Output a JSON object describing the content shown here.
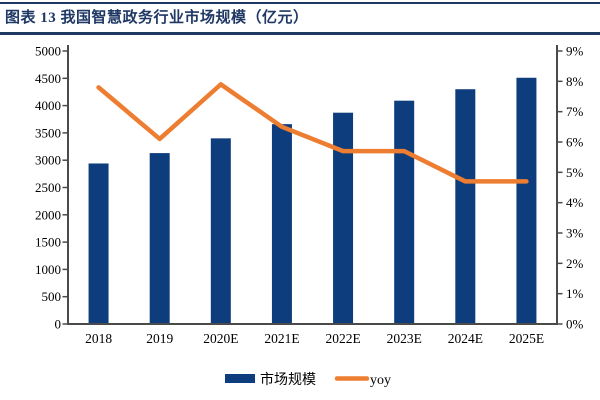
{
  "title": "图表 13 我国智慧政务行业市场规模（亿元）",
  "colors": {
    "title_navy": "#1F3864",
    "rule_navy": "#1F3864",
    "bar_blue": "#0D3D7C",
    "line_orange": "#ED7D31",
    "axis_gray": "#4A4A4A",
    "label_black": "#000000"
  },
  "chart_data": {
    "type": "combo",
    "categories": [
      "2018",
      "2019",
      "2020E",
      "2021E",
      "2022E",
      "2023E",
      "2024E",
      "2025E"
    ],
    "series": [
      {
        "name": "市场规模",
        "type": "bar",
        "axis": "left",
        "values": [
          2940,
          3130,
          3400,
          3660,
          3870,
          4090,
          4300,
          4510
        ]
      },
      {
        "name": "yoy",
        "type": "line",
        "axis": "right",
        "values": [
          7.8,
          6.1,
          7.9,
          6.5,
          5.7,
          5.7,
          4.7,
          4.7
        ]
      }
    ],
    "left_axis": {
      "min": 0,
      "max": 5000,
      "step": 500,
      "suffix": ""
    },
    "right_axis": {
      "min": 0,
      "max": 9,
      "step": 1,
      "suffix": "%"
    },
    "grid": false,
    "legend_position": "bottom"
  }
}
